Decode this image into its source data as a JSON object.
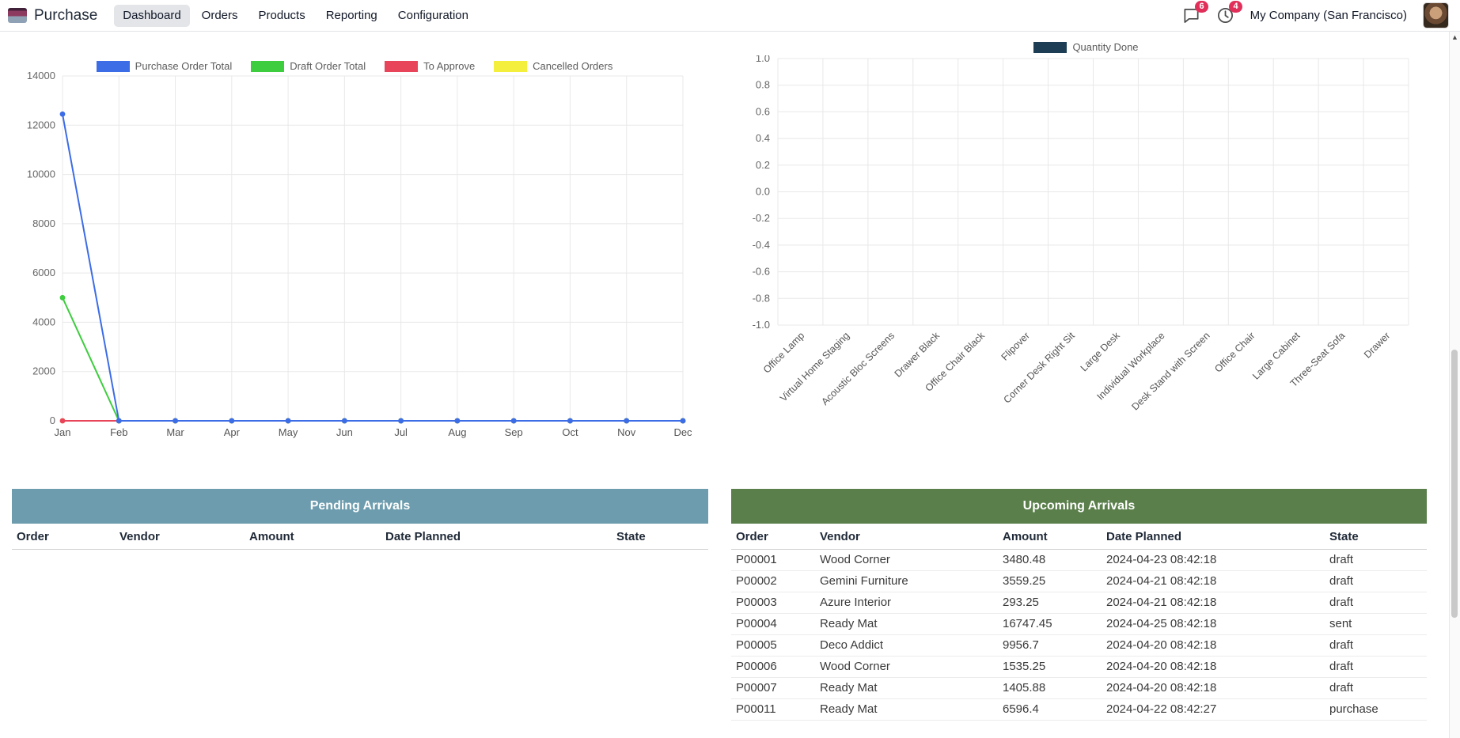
{
  "navbar": {
    "app_name": "Purchase",
    "menu": [
      {
        "label": "Dashboard",
        "active": true
      },
      {
        "label": "Orders",
        "active": false
      },
      {
        "label": "Products",
        "active": false
      },
      {
        "label": "Reporting",
        "active": false
      },
      {
        "label": "Configuration",
        "active": false
      }
    ],
    "messages_badge": "6",
    "activities_badge": "4",
    "company": "My Company (San Francisco)"
  },
  "chart_data": [
    {
      "type": "line",
      "title": "",
      "categories": [
        "Jan",
        "Feb",
        "Mar",
        "Apr",
        "May",
        "Jun",
        "Jul",
        "Aug",
        "Sep",
        "Oct",
        "Nov",
        "Dec"
      ],
      "series": [
        {
          "name": "Purchase Order Total",
          "color": "#3c6ce6",
          "values": [
            12450,
            0,
            0,
            0,
            0,
            0,
            0,
            0,
            0,
            0,
            0,
            0
          ]
        },
        {
          "name": "Draft Order Total",
          "color": "#3ecd3e",
          "values": [
            5000,
            0,
            0,
            0,
            0,
            0,
            0,
            0,
            0,
            0,
            0,
            0
          ]
        },
        {
          "name": "To Approve",
          "color": "#e8445a",
          "values": [
            0,
            0,
            0,
            0,
            0,
            0,
            0,
            0,
            0,
            0,
            0,
            0
          ]
        },
        {
          "name": "Cancelled Orders",
          "color": "#f4ee3c",
          "values": [
            0,
            0,
            0,
            0,
            0,
            0,
            0,
            0,
            0,
            0,
            0,
            0
          ]
        }
      ],
      "ylim": [
        0,
        14000
      ],
      "ytick_step": 2000,
      "grid": true,
      "legend_position": "top"
    },
    {
      "type": "bar",
      "title": "",
      "categories": [
        "Office Lamp",
        "Virtual Home Staging",
        "Acoustic Bloc Screens",
        "Drawer Black",
        "Office Chair Black",
        "Flipover",
        "Corner Desk Right Sit",
        "Large Desk",
        "Individual Workplace",
        "Desk Stand with Screen",
        "Office Chair",
        "Large Cabinet",
        "Three-Seat Sofa",
        "Drawer"
      ],
      "series": [
        {
          "name": "Quantity Done",
          "color": "#1d3d54",
          "values": [
            0,
            0,
            0,
            0,
            0,
            0,
            0,
            0,
            0,
            0,
            0,
            0,
            0,
            0
          ]
        }
      ],
      "ylim": [
        -1.0,
        1.0
      ],
      "ytick_step": 0.2,
      "grid": true,
      "legend_position": "top"
    }
  ],
  "pending": {
    "title": "Pending Arrivals",
    "columns": [
      "Order",
      "Vendor",
      "Amount",
      "Date Planned",
      "State"
    ],
    "rows": []
  },
  "upcoming": {
    "title": "Upcoming Arrivals",
    "columns": [
      "Order",
      "Vendor",
      "Amount",
      "Date Planned",
      "State"
    ],
    "rows": [
      [
        "P00001",
        "Wood Corner",
        "3480.48",
        "2024-04-23 08:42:18",
        "draft"
      ],
      [
        "P00002",
        "Gemini Furniture",
        "3559.25",
        "2024-04-21 08:42:18",
        "draft"
      ],
      [
        "P00003",
        "Azure Interior",
        "293.25",
        "2024-04-21 08:42:18",
        "draft"
      ],
      [
        "P00004",
        "Ready Mat",
        "16747.45",
        "2024-04-25 08:42:18",
        "sent"
      ],
      [
        "P00005",
        "Deco Addict",
        "9956.7",
        "2024-04-20 08:42:18",
        "draft"
      ],
      [
        "P00006",
        "Wood Corner",
        "1535.25",
        "2024-04-20 08:42:18",
        "draft"
      ],
      [
        "P00007",
        "Ready Mat",
        "1405.88",
        "2024-04-20 08:42:18",
        "draft"
      ],
      [
        "P00011",
        "Ready Mat",
        "6596.4",
        "2024-04-22 08:42:27",
        "purchase"
      ]
    ]
  }
}
